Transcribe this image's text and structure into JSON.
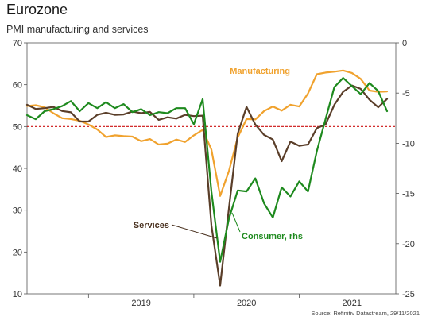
{
  "chart_data": {
    "type": "line",
    "title": "Eurozone",
    "subtitle": "PMI manufacturing and services",
    "source": "Source: Refinitiv Datastream, 29/11/2021",
    "left_axis": {
      "ylim": [
        10,
        70
      ],
      "ticks": [
        10,
        20,
        30,
        40,
        50,
        60,
        70
      ]
    },
    "right_axis": {
      "ylim": [
        -25,
        0
      ],
      "ticks": [
        -25,
        -20,
        -15,
        -10,
        -5,
        0
      ]
    },
    "x_axis": {
      "xlim": [
        "2018-06",
        "2021-12"
      ],
      "ticks": [
        "2019",
        "2020",
        "2021"
      ]
    },
    "reference_line": {
      "value": 50,
      "axis": "left",
      "style": "dashed",
      "color": "#cc1111"
    },
    "series": [
      {
        "name": "Manufacturing",
        "axis": "left",
        "color": "#f0a22e",
        "x": [
          "2018-06",
          "2018-07",
          "2018-08",
          "2018-09",
          "2018-10",
          "2018-11",
          "2018-12",
          "2019-01",
          "2019-02",
          "2019-03",
          "2019-04",
          "2019-05",
          "2019-06",
          "2019-07",
          "2019-08",
          "2019-09",
          "2019-10",
          "2019-11",
          "2019-12",
          "2020-01",
          "2020-02",
          "2020-03",
          "2020-04",
          "2020-05",
          "2020-06",
          "2020-07",
          "2020-08",
          "2020-09",
          "2020-10",
          "2020-11",
          "2020-12",
          "2021-01",
          "2021-02",
          "2021-03",
          "2021-04",
          "2021-05",
          "2021-06",
          "2021-07",
          "2021-08",
          "2021-09",
          "2021-10",
          "2021-11"
        ],
        "y": [
          54.9,
          55.1,
          54.6,
          53.2,
          52.0,
          51.8,
          51.4,
          50.5,
          49.3,
          47.5,
          47.9,
          47.7,
          47.6,
          46.5,
          47.0,
          45.7,
          45.9,
          46.9,
          46.3,
          47.9,
          49.2,
          44.5,
          33.4,
          39.4,
          47.4,
          51.8,
          51.7,
          53.7,
          54.8,
          53.8,
          55.2,
          54.8,
          57.9,
          62.5,
          62.9,
          63.1,
          63.4,
          62.8,
          61.4,
          58.6,
          58.3,
          58.4
        ]
      },
      {
        "name": "Services",
        "axis": "left",
        "color": "#5a3e29",
        "x": [
          "2018-06",
          "2018-07",
          "2018-08",
          "2018-09",
          "2018-10",
          "2018-11",
          "2018-12",
          "2019-01",
          "2019-02",
          "2019-03",
          "2019-04",
          "2019-05",
          "2019-06",
          "2019-07",
          "2019-08",
          "2019-09",
          "2019-10",
          "2019-11",
          "2019-12",
          "2020-01",
          "2020-02",
          "2020-03",
          "2020-04",
          "2020-05",
          "2020-06",
          "2020-07",
          "2020-08",
          "2020-09",
          "2020-10",
          "2020-11",
          "2020-12",
          "2021-01",
          "2021-02",
          "2021-03",
          "2021-04",
          "2021-05",
          "2021-06",
          "2021-07",
          "2021-08",
          "2021-09",
          "2021-10",
          "2021-11"
        ],
        "y": [
          55.2,
          54.2,
          54.4,
          54.7,
          53.7,
          53.4,
          51.2,
          51.2,
          52.8,
          53.3,
          52.8,
          52.9,
          53.6,
          53.2,
          53.5,
          51.6,
          52.2,
          51.9,
          52.8,
          52.5,
          52.6,
          26.4,
          12.0,
          30.5,
          48.3,
          54.7,
          50.5,
          48.0,
          46.9,
          41.7,
          46.4,
          45.4,
          45.7,
          49.6,
          50.5,
          55.2,
          58.3,
          59.8,
          59.0,
          56.4,
          54.6,
          56.6
        ]
      },
      {
        "name": "Consumer, rhs",
        "axis": "right",
        "color": "#1e8a1e",
        "x": [
          "2018-06",
          "2018-07",
          "2018-08",
          "2018-09",
          "2018-10",
          "2018-11",
          "2018-12",
          "2019-01",
          "2019-02",
          "2019-03",
          "2019-04",
          "2019-05",
          "2019-06",
          "2019-07",
          "2019-08",
          "2019-09",
          "2019-10",
          "2019-11",
          "2019-12",
          "2020-01",
          "2020-02",
          "2020-03",
          "2020-04",
          "2020-05",
          "2020-06",
          "2020-07",
          "2020-08",
          "2020-09",
          "2020-10",
          "2020-11",
          "2020-12",
          "2021-01",
          "2021-02",
          "2021-03",
          "2021-04",
          "2021-05",
          "2021-06",
          "2021-07",
          "2021-08",
          "2021-09",
          "2021-10",
          "2021-11"
        ],
        "y": [
          -7.2,
          -7.6,
          -6.8,
          -6.6,
          -6.3,
          -5.8,
          -6.8,
          -6.0,
          -6.5,
          -5.9,
          -6.5,
          -6.1,
          -6.9,
          -6.6,
          -7.2,
          -6.9,
          -7.0,
          -6.5,
          -6.5,
          -8.1,
          -5.6,
          -14.8,
          -21.8,
          -17.5,
          -14.7,
          -14.8,
          -13.5,
          -16.0,
          -17.4,
          -14.4,
          -15.3,
          -13.8,
          -14.8,
          -10.8,
          -7.6,
          -4.4,
          -3.5,
          -4.3,
          -5.1,
          -4.0,
          -4.8,
          -6.8
        ]
      }
    ],
    "annotations": [
      {
        "text": "Manufacturing",
        "series": "Manufacturing",
        "color": "#f0a22e"
      },
      {
        "text": "Services",
        "series": "Services",
        "color": "#4a3220"
      },
      {
        "text": "Consumer, rhs",
        "series": "Consumer, rhs",
        "color": "#1e8a1e"
      }
    ]
  }
}
